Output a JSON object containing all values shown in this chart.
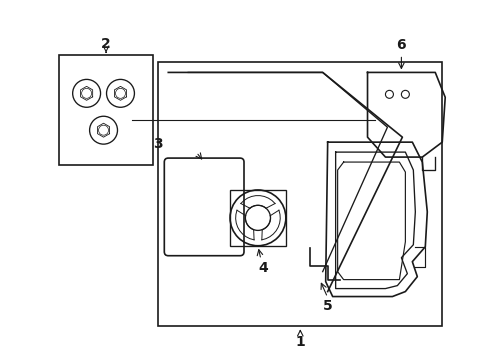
{
  "background_color": "#ffffff",
  "line_color": "#1a1a1a",
  "figsize": [
    4.89,
    3.6
  ],
  "dpi": 100
}
